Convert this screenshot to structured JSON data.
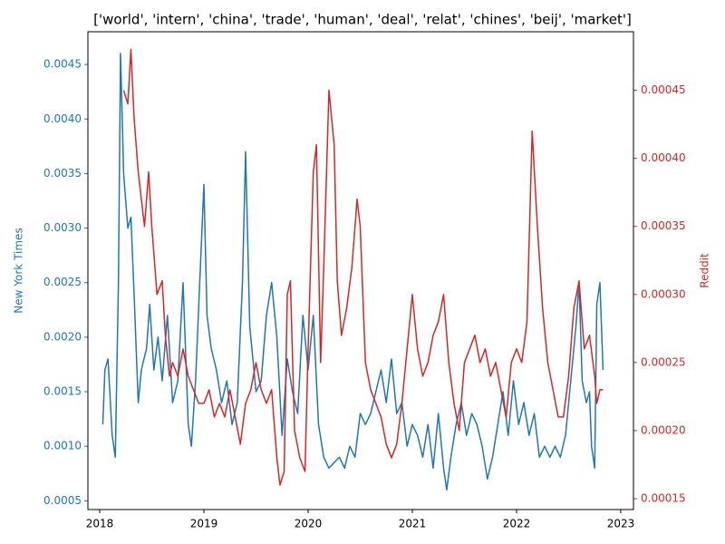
{
  "chart_data": {
    "type": "line",
    "title": "['world', 'intern', 'china', 'trade', 'human', 'deal', 'relat', 'chines', 'beij', 'market']",
    "ylabel": "New York Times",
    "y2label": "Reddit",
    "xlim": [
      2017.887,
      2023.122
    ],
    "xticks": [
      2018,
      2019,
      2020,
      2021,
      2022,
      2023
    ],
    "ylim": [
      0.00042,
      0.0048
    ],
    "yticks": [
      {
        "value": 0.0005,
        "label": "0.0005"
      },
      {
        "value": 0.001,
        "label": "0.0010"
      },
      {
        "value": 0.0015,
        "label": "0.0015"
      },
      {
        "value": 0.002,
        "label": "0.0020"
      },
      {
        "value": 0.0025,
        "label": "0.0025"
      },
      {
        "value": 0.003,
        "label": "0.0030"
      },
      {
        "value": 0.0035,
        "label": "0.0035"
      },
      {
        "value": 0.004,
        "label": "0.0040"
      },
      {
        "value": 0.0045,
        "label": "0.0045"
      }
    ],
    "y2lim": [
      0.000142,
      0.000493
    ],
    "y2ticks": [
      {
        "value": 0.00015,
        "label": "0.00015"
      },
      {
        "value": 0.0002,
        "label": "0.00020"
      },
      {
        "value": 0.00025,
        "label": "0.00025"
      },
      {
        "value": 0.0003,
        "label": "0.00030"
      },
      {
        "value": 0.00035,
        "label": "0.00035"
      },
      {
        "value": 0.0004,
        "label": "0.00040"
      },
      {
        "value": 0.00045,
        "label": "0.00045"
      }
    ],
    "series": [
      {
        "color": "#1f77b4",
        "axis": "y",
        "x": [
          2018.03,
          2018.05,
          2018.08,
          2018.12,
          2018.15,
          2018.18,
          2018.2,
          2018.23,
          2018.27,
          2018.3,
          2018.33,
          2018.37,
          2018.4,
          2018.45,
          2018.48,
          2018.52,
          2018.56,
          2018.6,
          2018.65,
          2018.7,
          2018.75,
          2018.8,
          2018.85,
          2018.88,
          2018.92,
          2018.96,
          2019.0,
          2019.03,
          2019.07,
          2019.12,
          2019.17,
          2019.22,
          2019.27,
          2019.32,
          2019.37,
          2019.4,
          2019.44,
          2019.5,
          2019.55,
          2019.6,
          2019.65,
          2019.7,
          2019.75,
          2019.8,
          2019.85,
          2019.9,
          2019.95,
          2020.0,
          2020.05,
          2020.1,
          2020.15,
          2020.2,
          2020.3,
          2020.35,
          2020.4,
          2020.45,
          2020.5,
          2020.55,
          2020.6,
          2020.65,
          2020.7,
          2020.75,
          2020.8,
          2020.85,
          2020.9,
          2020.95,
          2021.0,
          2021.05,
          2021.1,
          2021.15,
          2021.2,
          2021.25,
          2021.3,
          2021.33,
          2021.37,
          2021.42,
          2021.47,
          2021.52,
          2021.57,
          2021.62,
          2021.67,
          2021.72,
          2021.77,
          2021.82,
          2021.87,
          2021.92,
          2021.97,
          2022.02,
          2022.07,
          2022.12,
          2022.17,
          2022.22,
          2022.27,
          2022.32,
          2022.37,
          2022.42,
          2022.47,
          2022.52,
          2022.57,
          2022.6,
          2022.63,
          2022.67,
          2022.7,
          2022.72,
          2022.75,
          2022.77,
          2022.8,
          2022.83
        ],
        "values": [
          0.0012,
          0.0017,
          0.0018,
          0.0011,
          0.0009,
          0.0025,
          0.0046,
          0.0035,
          0.003,
          0.0031,
          0.0024,
          0.0014,
          0.0017,
          0.0019,
          0.0023,
          0.0017,
          0.002,
          0.0016,
          0.0022,
          0.0014,
          0.0016,
          0.0025,
          0.0012,
          0.001,
          0.0016,
          0.0025,
          0.0034,
          0.0022,
          0.0019,
          0.0017,
          0.0014,
          0.0016,
          0.0012,
          0.0014,
          0.0025,
          0.0037,
          0.0021,
          0.0015,
          0.0016,
          0.0022,
          0.0025,
          0.002,
          0.0011,
          0.0018,
          0.0015,
          0.0013,
          0.0022,
          0.0017,
          0.0022,
          0.0012,
          0.0009,
          0.0008,
          0.0009,
          0.0008,
          0.001,
          0.0009,
          0.0013,
          0.0012,
          0.0013,
          0.0015,
          0.0017,
          0.0014,
          0.0018,
          0.0013,
          0.0014,
          0.001,
          0.0012,
          0.0011,
          0.0009,
          0.0012,
          0.0008,
          0.0013,
          0.0008,
          0.0006,
          0.0009,
          0.0012,
          0.0014,
          0.0011,
          0.0013,
          0.0012,
          0.001,
          0.0007,
          0.0009,
          0.0012,
          0.0015,
          0.0011,
          0.0016,
          0.0012,
          0.0014,
          0.0011,
          0.0013,
          0.0009,
          0.001,
          0.0009,
          0.001,
          0.0009,
          0.0011,
          0.0016,
          0.0021,
          0.0025,
          0.0016,
          0.0014,
          0.0015,
          0.001,
          0.0008,
          0.0023,
          0.0025,
          0.0017
        ]
      },
      {
        "color": "#d62728",
        "axis": "y2",
        "x": [
          2018.23,
          2018.27,
          2018.3,
          2018.33,
          2018.37,
          2018.4,
          2018.43,
          2018.47,
          2018.5,
          2018.55,
          2018.6,
          2018.63,
          2018.67,
          2018.7,
          2018.75,
          2018.8,
          2018.85,
          2018.9,
          2018.95,
          2019.0,
          2019.05,
          2019.1,
          2019.15,
          2019.2,
          2019.25,
          2019.3,
          2019.35,
          2019.4,
          2019.45,
          2019.5,
          2019.55,
          2019.6,
          2019.65,
          2019.7,
          2019.73,
          2019.77,
          2019.8,
          2019.83,
          2019.87,
          2019.92,
          2019.97,
          2020.0,
          2020.05,
          2020.08,
          2020.12,
          2020.15,
          2020.2,
          2020.25,
          2020.28,
          2020.32,
          2020.37,
          2020.42,
          2020.47,
          2020.5,
          2020.55,
          2020.6,
          2020.65,
          2020.7,
          2020.75,
          2020.8,
          2020.85,
          2020.9,
          2020.95,
          2021.0,
          2021.05,
          2021.1,
          2021.15,
          2021.2,
          2021.25,
          2021.3,
          2021.35,
          2021.4,
          2021.45,
          2021.5,
          2021.55,
          2021.6,
          2021.65,
          2021.7,
          2021.75,
          2021.8,
          2021.85,
          2021.9,
          2021.95,
          2022.0,
          2022.05,
          2022.1,
          2022.15,
          2022.2,
          2022.25,
          2022.3,
          2022.35,
          2022.4,
          2022.45,
          2022.5,
          2022.55,
          2022.6,
          2022.65,
          2022.7,
          2022.75,
          2022.77,
          2022.8,
          2022.83
        ],
        "values": [
          0.00045,
          0.00044,
          0.00048,
          0.00043,
          0.00039,
          0.00037,
          0.00035,
          0.00039,
          0.00035,
          0.0003,
          0.00031,
          0.00027,
          0.00024,
          0.00025,
          0.00024,
          0.00026,
          0.00024,
          0.00023,
          0.00022,
          0.00022,
          0.00023,
          0.00021,
          0.00022,
          0.00021,
          0.00023,
          0.00021,
          0.00019,
          0.00022,
          0.00023,
          0.00025,
          0.00023,
          0.00022,
          0.00023,
          0.00018,
          0.00016,
          0.00017,
          0.0003,
          0.00031,
          0.0002,
          0.00018,
          0.00017,
          0.00026,
          0.00039,
          0.00041,
          0.00025,
          0.00032,
          0.00045,
          0.00041,
          0.00031,
          0.00027,
          0.00029,
          0.00032,
          0.00037,
          0.00035,
          0.00025,
          0.00023,
          0.00022,
          0.00021,
          0.00019,
          0.00018,
          0.00019,
          0.00022,
          0.00026,
          0.0003,
          0.00026,
          0.00024,
          0.00025,
          0.00027,
          0.00028,
          0.0003,
          0.00025,
          0.00022,
          0.0002,
          0.00025,
          0.00026,
          0.00027,
          0.00025,
          0.00026,
          0.00024,
          0.00025,
          0.00023,
          0.00021,
          0.00025,
          0.00026,
          0.00025,
          0.00028,
          0.00042,
          0.00035,
          0.00029,
          0.00025,
          0.00023,
          0.00021,
          0.00021,
          0.00024,
          0.00029,
          0.00031,
          0.00026,
          0.00027,
          0.00024,
          0.00022,
          0.00023,
          0.00023
        ]
      }
    ]
  }
}
